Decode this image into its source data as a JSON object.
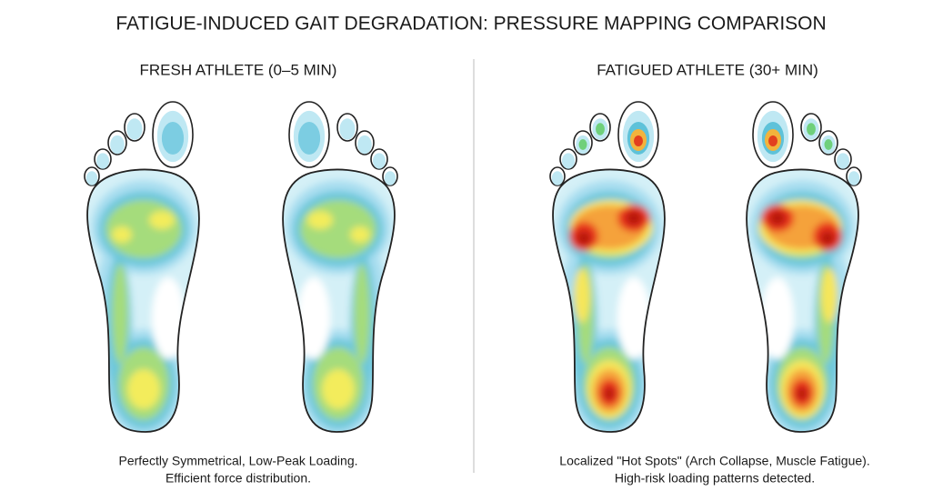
{
  "title": "FATIGUE-INDUCED GAIT DEGRADATION: PRESSURE MAPPING COMPARISON",
  "panels": [
    {
      "heading": "FRESH ATHLETE (0–5 MIN)",
      "caption": [
        "Perfectly Symmetrical, Low-Peak Loading.",
        "Efficient force distribution."
      ]
    },
    {
      "heading": "FATIGUED ATHLETE (30+ MIN)",
      "caption": [
        "Localized \"Hot Spots\" (Arch Collapse, Muscle Fatigue).",
        "High-risk loading patterns detected."
      ]
    }
  ]
}
